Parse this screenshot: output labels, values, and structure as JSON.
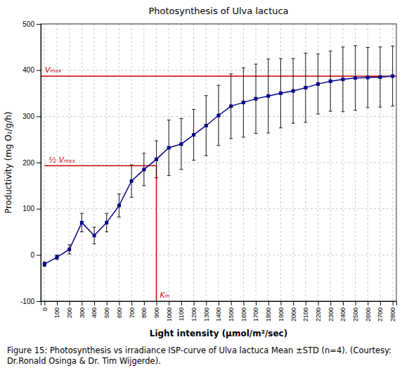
{
  "chart_data": {
    "type": "line",
    "title": "Photosynthesis of Ulva lactuca",
    "x_label": "Light intensity (μmol/m²/sec)",
    "y_label": "Productivity (mg O₂/g/h)",
    "caption": "Figure 15: Photosynthesis vs irradiance ISP-curve of Ulva lactuca Mean ±STD (n=4). (Courtesy: Dr.Ronald Osinga & Dr. Tim Wijgerde).",
    "x": [
      0,
      100,
      200,
      300,
      400,
      500,
      600,
      700,
      800,
      900,
      1000,
      1100,
      1200,
      1300,
      1400,
      1500,
      1600,
      1700,
      1800,
      1900,
      2000,
      2100,
      2200,
      2300,
      2400,
      2500,
      2600,
      2700,
      2800
    ],
    "series": [
      {
        "values": [
          -20,
          -5,
          12,
          70,
          42,
          70,
          107,
          160,
          185,
          207,
          232,
          240,
          260,
          280,
          302,
          322,
          330,
          338,
          344,
          350,
          355,
          362,
          370,
          376,
          380,
          383,
          384,
          385,
          387
        ],
        "errors": [
          5,
          5,
          10,
          20,
          18,
          20,
          25,
          35,
          35,
          40,
          60,
          55,
          55,
          65,
          65,
          70,
          75,
          75,
          80,
          75,
          70,
          75,
          65,
          65,
          70,
          70,
          65,
          65,
          65
        ],
        "color": "#00008B",
        "marker": "square",
        "line_style": "solid"
      }
    ],
    "vmax": {
      "label": "Vₘₐₓ",
      "y": 387,
      "color": "#CC0000"
    },
    "half_vmax": {
      "label": "½ Vₘₐₓ",
      "y": 193,
      "x": [
        0,
        900
      ],
      "color": "#CC0000"
    },
    "km": {
      "label": "Kₘ",
      "x": 900,
      "y": [
        -100,
        193
      ],
      "color": "#CC0000"
    },
    "xlim": [
      -30,
      2830
    ],
    "ylim": [
      -100,
      500
    ],
    "xticks": [
      0,
      100,
      200,
      300,
      400,
      500,
      600,
      700,
      800,
      900,
      1000,
      1100,
      1200,
      1300,
      1400,
      1500,
      1600,
      1700,
      1800,
      1900,
      2000,
      2100,
      2200,
      2300,
      2400,
      2500,
      2600,
      2700,
      2800
    ],
    "yticks": [
      -100,
      0,
      100,
      200,
      300,
      400,
      500
    ],
    "grid": true
  }
}
